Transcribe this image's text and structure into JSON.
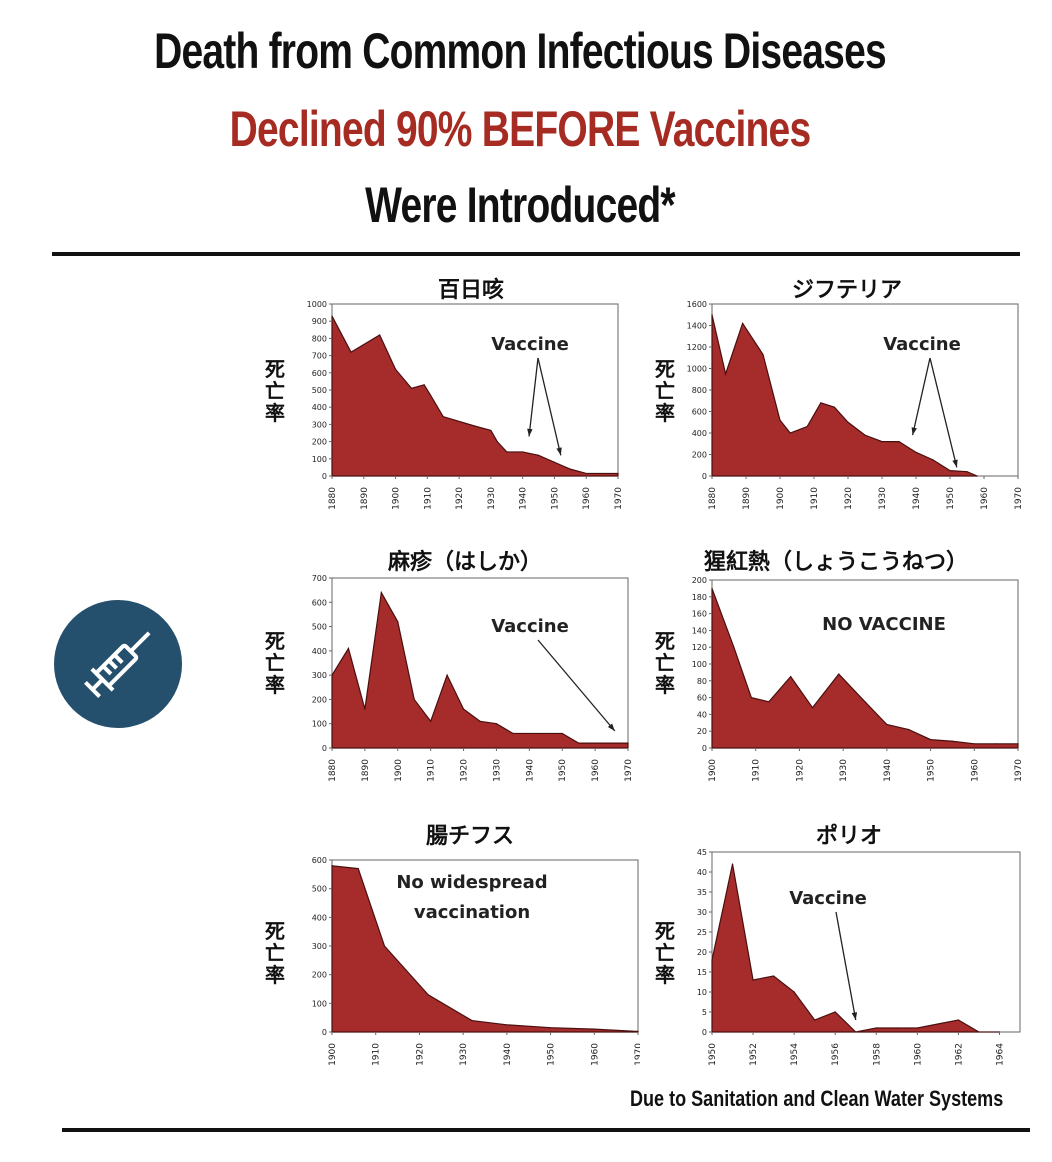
{
  "header": {
    "line1": "Death from Common Infectious Diseases",
    "line2": "Declined 90% BEFORE Vaccines",
    "line3": "Were Introduced*"
  },
  "footnote": "Due to Sanitation and Clean Water Systems",
  "icon": "syringe-icon",
  "colors": {
    "fill": "#a62b2b",
    "accent": "#a62b22",
    "icon_bg": "#25506d"
  },
  "chart_data": [
    {
      "id": "pertussis",
      "type": "area",
      "title": "百日咳",
      "ylabel": "死亡率",
      "ylim": [
        0,
        1000
      ],
      "yticks": [
        0,
        100,
        200,
        300,
        400,
        500,
        600,
        700,
        800,
        900,
        1000
      ],
      "xlim": [
        1880,
        1970
      ],
      "xticks": [
        1880,
        1890,
        1900,
        1910,
        1920,
        1930,
        1940,
        1950,
        1960,
        1970
      ],
      "x": [
        1880,
        1886,
        1895,
        1900,
        1905,
        1909,
        1911,
        1915,
        1925,
        1930,
        1932,
        1935,
        1940,
        1945,
        1950,
        1955,
        1960,
        1965,
        1970
      ],
      "y": [
        930,
        720,
        820,
        620,
        510,
        530,
        470,
        345,
        290,
        265,
        200,
        140,
        140,
        120,
        80,
        40,
        15,
        15,
        15
      ],
      "annotation": "Vaccine",
      "arrow_targets": [
        [
          1942,
          230
        ],
        [
          1952,
          120
        ]
      ]
    },
    {
      "id": "diphtheria",
      "type": "area",
      "title": "ジフテリア",
      "ylabel": "死亡率",
      "ylim": [
        0,
        1600
      ],
      "yticks": [
        0,
        200,
        400,
        600,
        800,
        1000,
        1200,
        1400,
        1600
      ],
      "xlim": [
        1880,
        1970
      ],
      "xticks": [
        1880,
        1890,
        1900,
        1910,
        1920,
        1930,
        1940,
        1950,
        1960,
        1970
      ],
      "x": [
        1880,
        1884,
        1889,
        1895,
        1900,
        1903,
        1908,
        1912,
        1916,
        1920,
        1925,
        1930,
        1935,
        1940,
        1945,
        1950,
        1955,
        1958
      ],
      "y": [
        1500,
        950,
        1420,
        1130,
        520,
        400,
        460,
        680,
        640,
        500,
        380,
        320,
        320,
        220,
        150,
        50,
        40,
        0
      ],
      "annotation": "Vaccine",
      "arrow_targets": [
        [
          1939,
          380
        ],
        [
          1952,
          80
        ]
      ]
    },
    {
      "id": "measles",
      "type": "area",
      "title": "麻疹（はしか）",
      "ylabel": "死亡率",
      "ylim": [
        0,
        700
      ],
      "yticks": [
        0,
        100,
        200,
        300,
        400,
        500,
        600,
        700
      ],
      "xlim": [
        1880,
        1970
      ],
      "xticks": [
        1880,
        1890,
        1900,
        1910,
        1920,
        1930,
        1940,
        1950,
        1960,
        1970
      ],
      "x": [
        1880,
        1885,
        1890,
        1895,
        1900,
        1905,
        1910,
        1915,
        1920,
        1925,
        1930,
        1935,
        1940,
        1945,
        1950,
        1955,
        1960,
        1965,
        1970
      ],
      "y": [
        300,
        410,
        160,
        640,
        520,
        200,
        110,
        300,
        160,
        110,
        100,
        60,
        60,
        60,
        60,
        20,
        20,
        20,
        20
      ],
      "annotation": "Vaccine",
      "arrow_targets": [
        [
          1966,
          70
        ]
      ]
    },
    {
      "id": "scarlet-fever",
      "type": "area",
      "title": "猩紅熱（しょうこうねつ）",
      "ylabel": "死亡率",
      "ylim": [
        0,
        200
      ],
      "yticks": [
        0,
        20,
        40,
        60,
        80,
        100,
        120,
        140,
        160,
        180,
        200
      ],
      "xlim": [
        1900,
        1970
      ],
      "xticks": [
        1900,
        1910,
        1920,
        1930,
        1940,
        1950,
        1960,
        1970
      ],
      "x": [
        1900,
        1905,
        1909,
        1913,
        1918,
        1923,
        1929,
        1935,
        1940,
        1945,
        1950,
        1955,
        1960,
        1965,
        1970
      ],
      "y": [
        190,
        120,
        60,
        55,
        85,
        48,
        88,
        55,
        28,
        22,
        10,
        8,
        5,
        5,
        5
      ],
      "annotation": "NO VACCINE"
    },
    {
      "id": "typhoid",
      "type": "area",
      "title": "腸チフス",
      "ylabel": "死亡率",
      "ylim": [
        0,
        600
      ],
      "yticks": [
        0,
        100,
        200,
        300,
        400,
        500,
        600
      ],
      "xlim": [
        1900,
        1970
      ],
      "xticks": [
        1900,
        1910,
        1920,
        1930,
        1940,
        1950,
        1960,
        1970
      ],
      "x": [
        1900,
        1906,
        1912,
        1922,
        1932,
        1940,
        1950,
        1960,
        1970
      ],
      "y": [
        580,
        570,
        300,
        130,
        40,
        25,
        15,
        10,
        2
      ],
      "annotation": "No widespread vaccination"
    },
    {
      "id": "polio",
      "type": "area",
      "title": "ポリオ",
      "ylabel": "死亡率",
      "ylim": [
        0,
        45
      ],
      "yticks": [
        0,
        5,
        10,
        15,
        20,
        25,
        30,
        35,
        40,
        45
      ],
      "xlim": [
        1950,
        1965
      ],
      "xticks": [
        1950,
        1952,
        1954,
        1956,
        1958,
        1960,
        1962,
        1964
      ],
      "x": [
        1950,
        1951,
        1952,
        1953,
        1954,
        1955,
        1956,
        1957,
        1958,
        1959,
        1960,
        1961,
        1962,
        1963,
        1964
      ],
      "y": [
        18,
        42,
        13,
        14,
        10,
        3,
        5,
        0,
        1,
        1,
        1,
        2,
        3,
        0,
        0
      ],
      "annotation": "Vaccine",
      "arrow_targets": [
        [
          1957,
          3
        ]
      ]
    }
  ]
}
